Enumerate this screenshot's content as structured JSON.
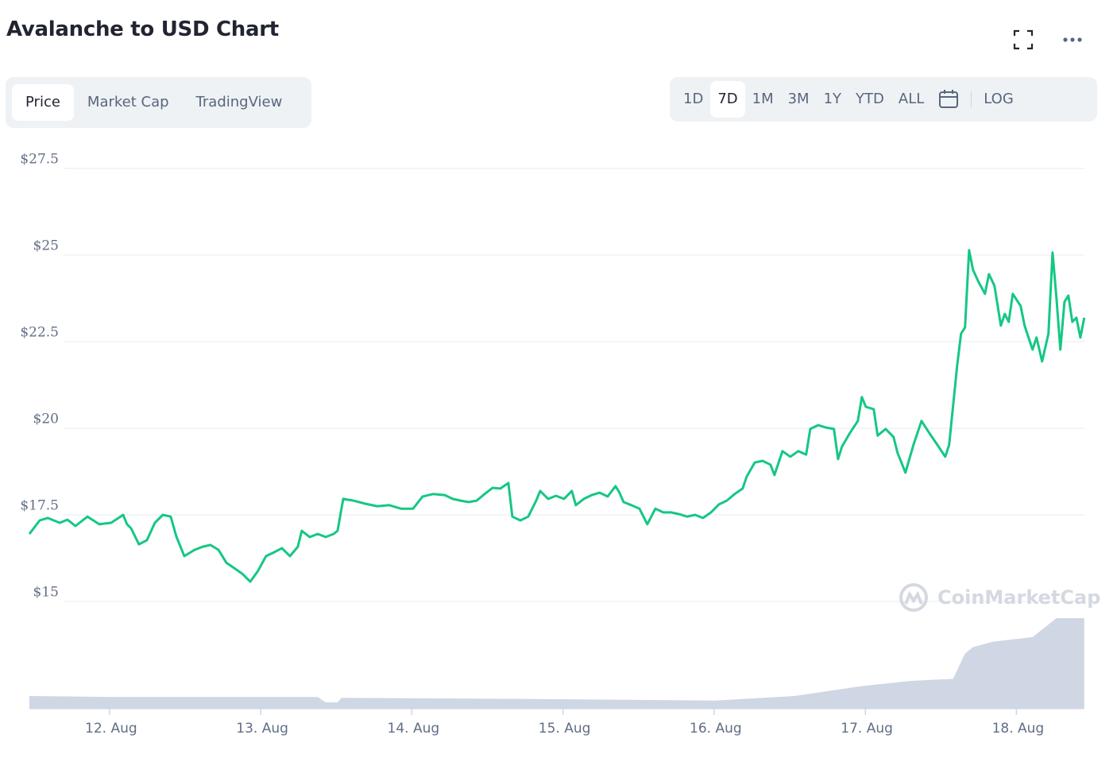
{
  "chart_data": {
    "type": "line",
    "title": "Avalanche to USD Chart",
    "tabs": [
      "Price",
      "Market Cap",
      "TradingView"
    ],
    "ranges": [
      "1D",
      "7D",
      "1M",
      "3M",
      "1Y",
      "YTD",
      "ALL"
    ],
    "scale_button": "LOG",
    "watermark": "CoinMarketCap",
    "grid": true,
    "xlim": [
      11.47,
      18.45
    ],
    "ylim": [
      15,
      27.5
    ],
    "y2lim": [
      0,
      100
    ],
    "xticks": [
      {
        "value": 12,
        "label": "12. Aug"
      },
      {
        "value": 13,
        "label": "13. Aug"
      },
      {
        "value": 14,
        "label": "14. Aug"
      },
      {
        "value": 15,
        "label": "15. Aug"
      },
      {
        "value": 16,
        "label": "16. Aug"
      },
      {
        "value": 17,
        "label": "17. Aug"
      },
      {
        "value": 18,
        "label": "18. Aug"
      }
    ],
    "yticks": [
      {
        "value": 15,
        "label": "$15"
      },
      {
        "value": 17.5,
        "label": "$17.5"
      },
      {
        "value": 20,
        "label": "$20"
      },
      {
        "value": 22.5,
        "label": "$22.5"
      },
      {
        "value": 25,
        "label": "$25"
      },
      {
        "value": 27.5,
        "label": "$27.5"
      }
    ],
    "series": [
      {
        "color": "#16c784",
        "x": [
          11.47,
          11.538,
          11.591,
          11.67,
          11.722,
          11.775,
          11.854,
          11.932,
          12.011,
          12.09,
          12.116,
          12.143,
          12.195,
          12.248,
          12.3,
          12.353,
          12.405,
          12.442,
          12.495,
          12.563,
          12.616,
          12.668,
          12.721,
          12.773,
          12.826,
          12.878,
          12.931,
          12.983,
          13.036,
          13.089,
          13.141,
          13.194,
          13.246,
          13.272,
          13.325,
          13.378,
          13.43,
          13.483,
          13.509,
          13.546,
          13.614,
          13.693,
          13.772,
          13.851,
          13.929,
          14.008,
          14.071,
          14.14,
          14.218,
          14.271,
          14.323,
          14.376,
          14.429,
          14.481,
          14.534,
          14.586,
          14.639,
          14.665,
          14.718,
          14.77,
          14.823,
          14.849,
          14.902,
          14.954,
          15.007,
          15.059,
          15.085,
          15.138,
          15.191,
          15.243,
          15.296,
          15.348,
          15.374,
          15.401,
          15.453,
          15.506,
          15.558,
          15.611,
          15.664,
          15.716,
          15.769,
          15.821,
          15.874,
          15.926,
          15.979,
          16.031,
          16.084,
          16.136,
          16.189,
          16.215,
          16.268,
          16.32,
          16.373,
          16.399,
          16.452,
          16.504,
          16.557,
          16.609,
          16.636,
          16.688,
          16.741,
          16.793,
          16.82,
          16.846,
          16.898,
          16.951,
          16.977,
          17.004,
          17.056,
          17.082,
          17.135,
          17.187,
          17.214,
          17.266,
          17.319,
          17.372,
          17.424,
          17.477,
          17.529,
          17.555,
          17.608,
          17.634,
          17.66,
          17.687,
          17.713,
          17.75,
          17.792,
          17.818,
          17.855,
          17.897,
          17.923,
          17.949,
          17.976,
          18.028,
          18.054,
          18.107,
          18.133,
          18.17,
          18.212,
          18.239,
          18.265,
          18.291,
          18.318,
          18.344,
          18.37,
          18.397,
          18.423,
          18.449
        ],
        "values": [
          16.95,
          17.34,
          17.41,
          17.27,
          17.36,
          17.18,
          17.45,
          17.23,
          17.27,
          17.5,
          17.23,
          17.11,
          16.65,
          16.77,
          17.27,
          17.5,
          17.45,
          16.88,
          16.31,
          16.49,
          16.58,
          16.63,
          16.49,
          16.12,
          15.96,
          15.8,
          15.57,
          15.89,
          16.31,
          16.42,
          16.54,
          16.31,
          16.58,
          17.04,
          16.86,
          16.95,
          16.86,
          16.95,
          17.04,
          17.96,
          17.91,
          17.82,
          17.75,
          17.78,
          17.68,
          17.68,
          18.03,
          18.1,
          18.07,
          17.96,
          17.91,
          17.87,
          17.91,
          18.1,
          18.28,
          18.26,
          18.42,
          17.45,
          17.34,
          17.45,
          17.91,
          18.19,
          17.96,
          18.05,
          17.96,
          18.19,
          17.78,
          17.96,
          18.07,
          18.14,
          18.03,
          18.33,
          18.14,
          17.87,
          17.78,
          17.68,
          17.23,
          17.68,
          17.57,
          17.57,
          17.52,
          17.45,
          17.5,
          17.41,
          17.57,
          17.8,
          17.91,
          18.1,
          18.26,
          18.6,
          19.01,
          19.06,
          18.95,
          18.65,
          19.34,
          19.18,
          19.34,
          19.24,
          19.98,
          20.09,
          20.02,
          19.98,
          19.11,
          19.47,
          19.86,
          20.21,
          20.9,
          20.62,
          20.55,
          19.79,
          19.98,
          19.75,
          19.29,
          18.72,
          19.52,
          20.21,
          19.86,
          19.52,
          19.18,
          19.52,
          21.81,
          22.73,
          22.91,
          25.14,
          24.57,
          24.22,
          23.88,
          24.45,
          24.11,
          22.96,
          23.3,
          23.07,
          23.88,
          23.53,
          22.96,
          22.27,
          22.62,
          21.93,
          22.73,
          25.07,
          23.76,
          22.27,
          23.65,
          23.83,
          23.07,
          23.19,
          22.62,
          23.19
        ]
      },
      {
        "color": "#cfd6e4",
        "type": "area",
        "axis": "y2",
        "x": [
          11.47,
          12.011,
          13.01,
          13.378,
          13.43,
          13.509,
          13.535,
          14.639,
          16.005,
          16.531,
          16.977,
          17.319,
          17.581,
          17.66,
          17.713,
          17.844,
          18.107,
          18.265,
          18.449
        ],
        "values": [
          14,
          13,
          13,
          13,
          7,
          7,
          12,
          11,
          9,
          14,
          25,
          31,
          33,
          61,
          68,
          74,
          79,
          100,
          100
        ]
      }
    ]
  }
}
